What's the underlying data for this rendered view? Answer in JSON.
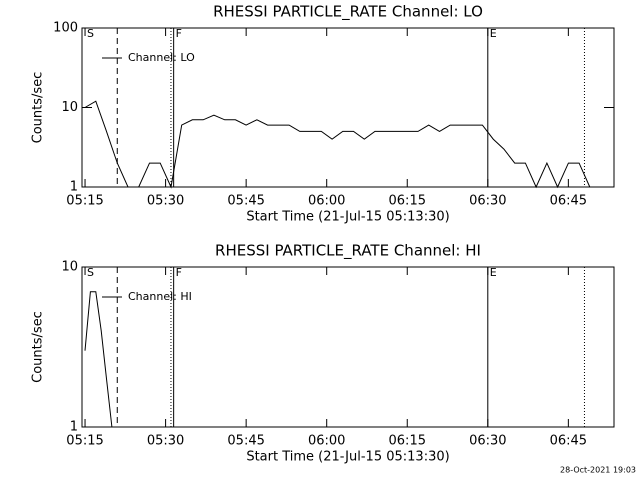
{
  "chart_data": [
    {
      "type": "line",
      "title": "RHESSI PARTICLE_RATE Channel: LO",
      "xlabel": "Start Time (21-Jul-15 05:13:30)",
      "ylabel": "Counts/sec",
      "log_y": true,
      "legend": "upper left",
      "x": [
        "05:15",
        "05:17",
        "05:19",
        "05:21",
        "05:23",
        "05:25",
        "05:27",
        "05:29",
        "05:31",
        "05:33",
        "05:35",
        "05:37",
        "05:39",
        "05:41",
        "05:43",
        "05:45",
        "05:47",
        "05:49",
        "05:51",
        "05:53",
        "05:55",
        "05:57",
        "05:59",
        "06:01",
        "06:03",
        "06:05",
        "06:07",
        "06:09",
        "06:11",
        "06:13",
        "06:15",
        "06:17",
        "06:19",
        "06:21",
        "06:23",
        "06:25",
        "06:27",
        "06:29",
        "06:31",
        "06:33",
        "06:35",
        "06:37",
        "06:39",
        "06:41",
        "06:43",
        "06:45",
        "06:47",
        "06:49",
        "06:51"
      ],
      "series": [
        {
          "name": "Channel: LO",
          "color": "#000000",
          "values": [
            10,
            12,
            5,
            2,
            1,
            1,
            2,
            2,
            1,
            6,
            7,
            7,
            8,
            7,
            7,
            6,
            7,
            6,
            6,
            6,
            5,
            5,
            5,
            4,
            5,
            5,
            4,
            5,
            5,
            5,
            5,
            5,
            6,
            5,
            6,
            6,
            6,
            6,
            4,
            3,
            2,
            2,
            1,
            2,
            1,
            2,
            2,
            1,
            null
          ]
        }
      ],
      "xlim": [
        "05:14:26",
        "06:53:30"
      ],
      "xticks": [
        "05:15",
        "05:30",
        "05:45",
        "06:00",
        "06:15",
        "06:30",
        "06:45"
      ],
      "ylim": [
        1,
        100
      ],
      "yticks": [
        1,
        10,
        100
      ],
      "vlines": [
        {
          "x": "05:21",
          "style": "dashed"
        },
        {
          "x": "05:31",
          "style": "dotted"
        },
        {
          "x": "05:31:30",
          "style": "solid"
        },
        {
          "x": "06:30",
          "style": "solid"
        },
        {
          "x": "06:48",
          "style": "dotted"
        }
      ],
      "flags": [
        {
          "x": "05:15",
          "label": "S"
        },
        {
          "x": "05:31:30",
          "label": "F"
        },
        {
          "x": "06:30",
          "label": "E"
        }
      ]
    },
    {
      "type": "line",
      "title": "RHESSI PARTICLE_RATE Channel: HI",
      "xlabel": "Start Time (21-Jul-15 05:13:30)",
      "ylabel": "Counts/sec",
      "log_y": true,
      "legend": "upper left",
      "x": [
        "05:15",
        "05:16",
        "05:17",
        "05:18",
        "05:19",
        "05:20"
      ],
      "series": [
        {
          "name": "Channel: HI",
          "color": "#000000",
          "values": [
            3,
            7,
            7,
            4,
            2,
            1
          ]
        }
      ],
      "xlim": [
        "05:14:26",
        "06:53:30"
      ],
      "xticks": [
        "05:15",
        "05:30",
        "05:45",
        "06:00",
        "06:15",
        "06:30",
        "06:45"
      ],
      "ylim": [
        1,
        10
      ],
      "yticks": [
        1,
        10
      ],
      "vlines": [
        {
          "x": "05:21",
          "style": "dashed"
        },
        {
          "x": "05:31",
          "style": "dotted"
        },
        {
          "x": "05:31:30",
          "style": "solid"
        },
        {
          "x": "06:30",
          "style": "solid"
        },
        {
          "x": "06:48",
          "style": "dotted"
        }
      ],
      "flags": [
        {
          "x": "05:15",
          "label": "S"
        },
        {
          "x": "05:31:30",
          "label": "F"
        },
        {
          "x": "06:30",
          "label": "E"
        }
      ]
    }
  ],
  "footer": "28-Oct-2021 19:03"
}
